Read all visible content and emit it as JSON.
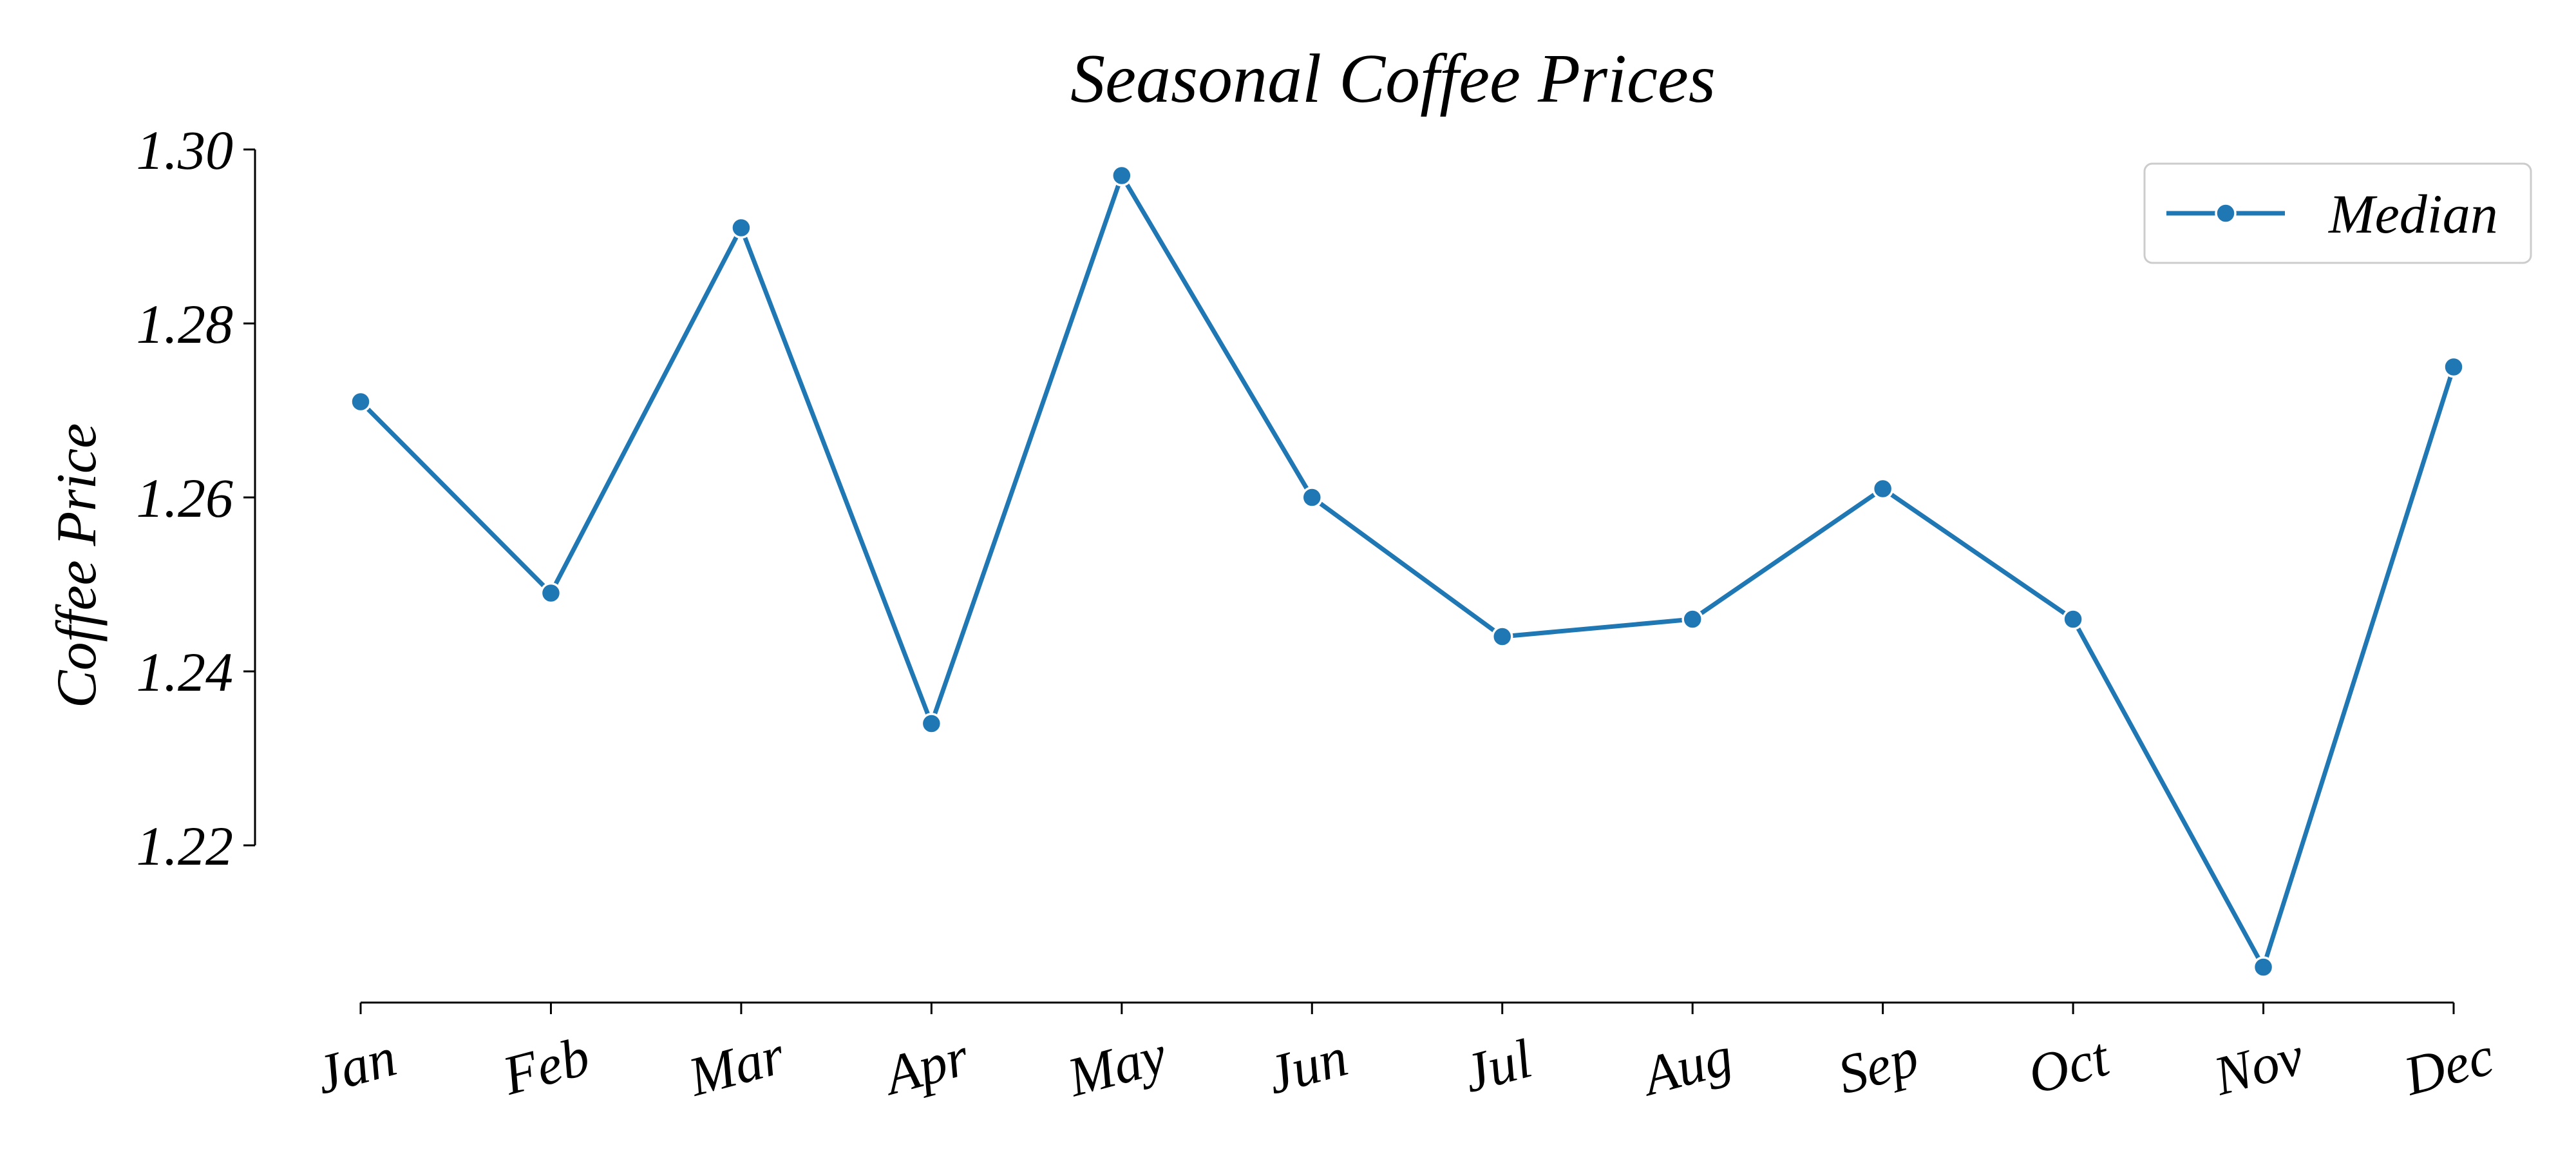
{
  "chart_data": {
    "type": "line",
    "title": "Seasonal Coffee Prices",
    "xlabel": "",
    "ylabel": "Coffee Price",
    "categories": [
      "Jan",
      "Feb",
      "Mar",
      "Apr",
      "May",
      "Jun",
      "Jul",
      "Aug",
      "Sep",
      "Oct",
      "Nov",
      "Dec"
    ],
    "series": [
      {
        "name": "Median",
        "values": [
          1.271,
          1.249,
          1.291,
          1.234,
          1.297,
          1.26,
          1.244,
          1.246,
          1.261,
          1.246,
          1.206,
          1.275
        ],
        "color": "#1f77b4",
        "marker": "circle"
      }
    ],
    "ylim": [
      1.202,
      1.302
    ],
    "yticks": [
      1.22,
      1.24,
      1.26,
      1.28,
      1.3
    ],
    "ytick_labels": [
      "1.22",
      "1.24",
      "1.26",
      "1.28",
      "1.30"
    ],
    "grid": false,
    "legend": "top-right",
    "axis_color": "#000000"
  }
}
